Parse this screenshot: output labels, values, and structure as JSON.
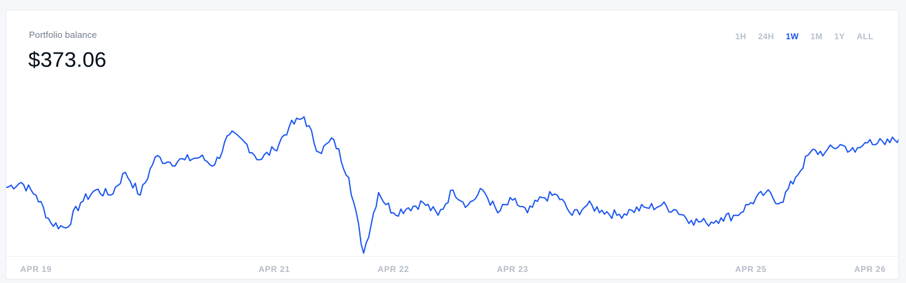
{
  "header": {
    "title": "Portfolio balance",
    "balance": "$373.06"
  },
  "ranges": [
    {
      "label": "1H",
      "active": false
    },
    {
      "label": "24H",
      "active": false
    },
    {
      "label": "1W",
      "active": true
    },
    {
      "label": "1M",
      "active": false
    },
    {
      "label": "1Y",
      "active": false
    },
    {
      "label": "ALL",
      "active": false
    }
  ],
  "colors": {
    "line": "#1652f0",
    "active_range": "#1652f0",
    "inactive_range": "#b7c0cc"
  },
  "chart_data": {
    "type": "line",
    "title": "",
    "xlabel": "",
    "ylabel": "",
    "x_tick_labels": [
      "APR 19",
      "APR 21",
      "APR 22",
      "APR 23",
      "APR 25",
      "APR 26"
    ],
    "x_tick_dates": [
      "2019-04-19",
      "2019-04-21",
      "2019-04-22",
      "2019-04-23",
      "2019-04-25",
      "2019-04-26"
    ],
    "ylim": [
      320,
      380
    ],
    "grid": false,
    "legend": "none",
    "series": [
      {
        "name": "",
        "x": [
          "2019-04-18T18:00",
          "2019-04-18T21:00",
          "2019-04-19T00:00",
          "2019-04-19T03:00",
          "2019-04-19T06:00",
          "2019-04-19T09:00",
          "2019-04-19T12:00",
          "2019-04-19T15:00",
          "2019-04-19T18:00",
          "2019-04-19T21:00",
          "2019-04-20T00:00",
          "2019-04-20T03:00",
          "2019-04-20T06:00",
          "2019-04-20T09:00",
          "2019-04-20T12:00",
          "2019-04-20T15:00",
          "2019-04-20T18:00",
          "2019-04-20T21:00",
          "2019-04-21T00:00",
          "2019-04-21T03:00",
          "2019-04-21T06:00",
          "2019-04-21T09:00",
          "2019-04-21T12:00",
          "2019-04-21T15:00",
          "2019-04-21T18:00",
          "2019-04-21T21:00",
          "2019-04-22T00:00",
          "2019-04-22T03:00",
          "2019-04-22T06:00",
          "2019-04-22T09:00",
          "2019-04-22T12:00",
          "2019-04-22T15:00",
          "2019-04-22T18:00",
          "2019-04-22T21:00",
          "2019-04-23T00:00",
          "2019-04-23T03:00",
          "2019-04-23T06:00",
          "2019-04-23T09:00",
          "2019-04-23T12:00",
          "2019-04-23T15:00",
          "2019-04-23T18:00",
          "2019-04-23T21:00",
          "2019-04-24T00:00",
          "2019-04-24T03:00",
          "2019-04-24T06:00",
          "2019-04-24T09:00",
          "2019-04-24T12:00",
          "2019-04-24T15:00",
          "2019-04-24T18:00",
          "2019-04-24T21:00",
          "2019-04-25T00:00",
          "2019-04-25T03:00",
          "2019-04-25T06:00",
          "2019-04-25T09:00",
          "2019-04-25T12:00",
          "2019-04-25T15:00",
          "2019-04-25T18:00",
          "2019-04-25T21:00",
          "2019-04-26T00:00",
          "2019-04-26T03:00",
          "2019-04-26T06:00"
        ],
        "values": [
          348,
          350,
          345,
          334,
          332,
          342,
          347,
          345,
          354,
          345,
          360,
          358,
          359,
          360,
          357,
          369,
          366,
          359,
          363,
          372,
          376,
          362,
          367,
          352,
          322,
          346,
          338,
          340,
          342,
          337,
          347,
          341,
          347,
          338,
          343,
          338,
          344,
          345,
          337,
          341,
          339,
          337,
          339,
          340,
          341,
          339,
          335,
          334,
          336,
          337,
          342,
          346,
          342,
          352,
          362,
          362,
          365,
          362,
          367,
          365,
          368
        ]
      }
    ]
  }
}
